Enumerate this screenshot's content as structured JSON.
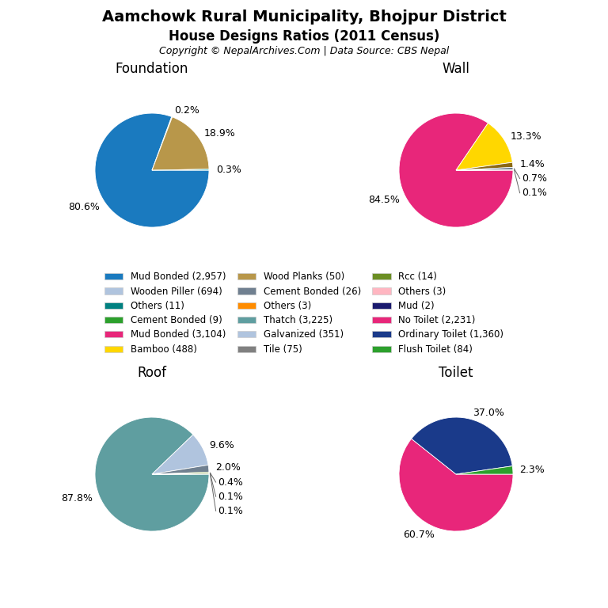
{
  "title": "Aamchowk Rural Municipality, Bhojpur District",
  "subtitle": "House Designs Ratios (2011 Census)",
  "annotations": [
    "Copyright © NepalArchives.Com | Data Source: CBS Nepal"
  ],
  "legend": "center",
  "legend_entries": [
    {
      "label": "Mud Bonded (2,957)",
      "color": "#1a7abf"
    },
    {
      "label": "Wooden Piller (694)",
      "color": "#b0c4de"
    },
    {
      "label": "Others (11)",
      "color": "#008080"
    },
    {
      "label": "Cement Bonded (9)",
      "color": "#2ca02c"
    },
    {
      "label": "Mud Bonded (3,104)",
      "color": "#e8267a"
    },
    {
      "label": "Bamboo (488)",
      "color": "#ffd700"
    },
    {
      "label": "Wood Planks (50)",
      "color": "#b8974a"
    },
    {
      "label": "Cement Bonded (26)",
      "color": "#708090"
    },
    {
      "label": "Others (3)",
      "color": "#ff8c00"
    },
    {
      "label": "Thatch (3,225)",
      "color": "#5f9ea0"
    },
    {
      "label": "Galvanized (351)",
      "color": "#b0c4de"
    },
    {
      "label": "Tile (75)",
      "color": "#808080"
    },
    {
      "label": "Rcc (14)",
      "color": "#6b8e23"
    },
    {
      "label": "Others (3)",
      "color": "#ffb6c1"
    },
    {
      "label": "Mud (2)",
      "color": "#1a1a6e"
    },
    {
      "label": "No Toilet (2,231)",
      "color": "#e8267a"
    },
    {
      "label": "Ordinary Toilet (1,360)",
      "color": "#1a3a8a"
    },
    {
      "label": "Flush Toilet (84)",
      "color": "#2ca02c"
    }
  ],
  "chart_data": [
    {
      "type": "pie",
      "title": "Foundation",
      "values": [
        80.6,
        0.2,
        18.9,
        0.3
      ],
      "value_labels": [
        "80.6%",
        "0.2%",
        "18.9%",
        "0.3%"
      ],
      "colors": [
        "#1a7abf",
        "#2ca02c",
        "#b8974a",
        "#00a0a0"
      ]
    },
    {
      "type": "pie",
      "title": "Wall",
      "values": [
        84.5,
        13.3,
        1.4,
        0.7,
        0.1
      ],
      "value_labels": [
        "84.5%",
        "13.3%",
        "1.4%",
        "0.7%",
        "0.1%"
      ],
      "colors": [
        "#e8267a",
        "#ffd700",
        "#8b6914",
        "#708090",
        "#c8a96e"
      ]
    },
    {
      "type": "pie",
      "title": "Roof",
      "values": [
        87.8,
        9.6,
        2.0,
        0.4,
        0.1,
        0.1
      ],
      "value_labels": [
        "87.8%",
        "9.6%",
        "2.0%",
        "0.4%",
        "0.1%",
        "0.1%"
      ],
      "colors": [
        "#5f9ea0",
        "#b0c4de",
        "#708090",
        "#6b8e23",
        "#556b2f",
        "#2ca02c"
      ]
    },
    {
      "type": "pie",
      "title": "Toilet",
      "values": [
        60.7,
        37.0,
        2.3
      ],
      "value_labels": [
        "60.7%",
        "37.0%",
        "2.3%"
      ],
      "colors": [
        "#e8267a",
        "#1a3a8a",
        "#2ca02c"
      ]
    }
  ]
}
